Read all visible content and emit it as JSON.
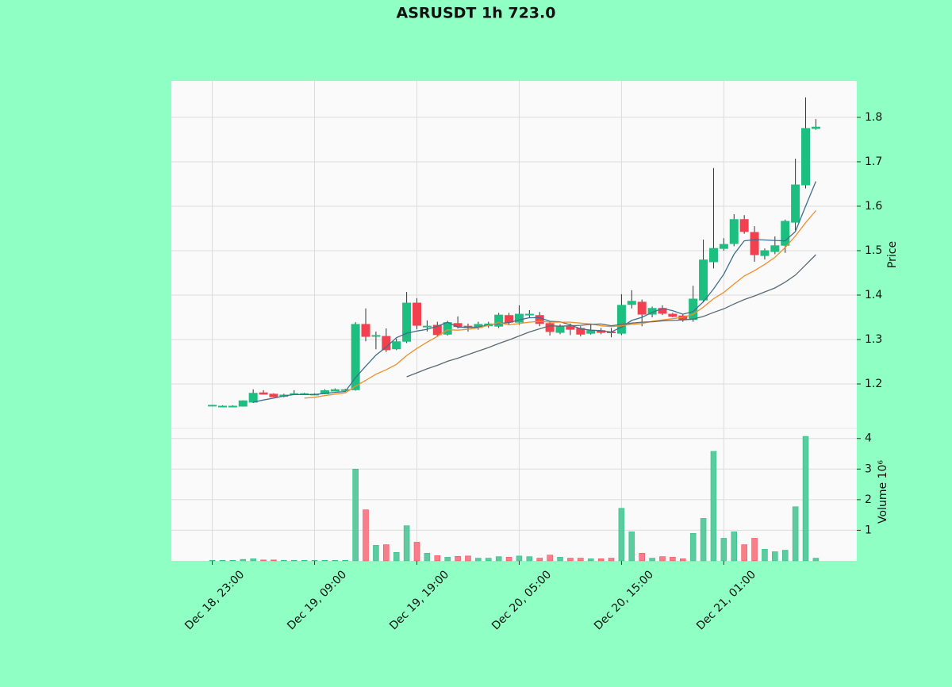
{
  "chart_data": {
    "type": "candlestick",
    "title": "ASRUSDT 1h 723.0",
    "categories": [
      "Dec 18, 23:00",
      null,
      null,
      null,
      null,
      null,
      null,
      null,
      null,
      null,
      "Dec 19, 09:00",
      null,
      null,
      null,
      null,
      null,
      null,
      null,
      null,
      null,
      "Dec 19, 19:00",
      null,
      null,
      null,
      null,
      null,
      null,
      null,
      null,
      null,
      "Dec 20, 05:00",
      null,
      null,
      null,
      null,
      null,
      null,
      null,
      null,
      null,
      "Dec 20, 15:00",
      null,
      null,
      null,
      null,
      null,
      null,
      null,
      null,
      null,
      "Dec 21, 01:00",
      null,
      null,
      null,
      null,
      null,
      null,
      null,
      null,
      null
    ],
    "open": [
      1.152,
      1.15,
      1.15,
      1.15,
      1.159,
      1.18,
      1.177,
      1.172,
      1.178,
      1.178,
      1.177,
      1.178,
      1.184,
      1.187,
      1.187,
      1.334,
      1.309,
      1.307,
      1.279,
      1.296,
      1.382,
      1.33,
      1.332,
      1.312,
      1.336,
      1.33,
      1.327,
      1.331,
      1.33,
      1.354,
      1.339,
      1.357,
      1.354,
      1.336,
      1.316,
      1.329,
      1.325,
      1.314,
      1.32,
      1.317,
      1.314,
      1.379,
      1.384,
      1.357,
      1.37,
      1.357,
      1.353,
      1.345,
      1.389,
      1.475,
      1.505,
      1.516,
      1.57,
      1.541,
      1.489,
      1.498,
      1.512,
      1.564,
      1.648,
      1.775
    ],
    "high": [
      1.153,
      1.152,
      1.152,
      1.163,
      1.188,
      1.186,
      1.179,
      1.178,
      1.186,
      1.18,
      1.179,
      1.188,
      1.19,
      1.189,
      1.339,
      1.37,
      1.318,
      1.325,
      1.302,
      1.407,
      1.393,
      1.343,
      1.34,
      1.342,
      1.352,
      1.336,
      1.34,
      1.34,
      1.36,
      1.36,
      1.377,
      1.366,
      1.362,
      1.34,
      1.334,
      1.336,
      1.33,
      1.334,
      1.326,
      1.326,
      1.402,
      1.411,
      1.39,
      1.374,
      1.377,
      1.36,
      1.356,
      1.421,
      1.525,
      1.686,
      1.528,
      1.582,
      1.58,
      1.555,
      1.505,
      1.532,
      1.57,
      1.707,
      1.845,
      1.796
    ],
    "low": [
      1.151,
      1.149,
      1.149,
      1.149,
      1.157,
      1.176,
      1.17,
      1.17,
      1.176,
      1.176,
      1.175,
      1.177,
      1.183,
      1.185,
      1.185,
      1.296,
      1.278,
      1.272,
      1.276,
      1.292,
      1.323,
      1.318,
      1.307,
      1.309,
      1.325,
      1.318,
      1.322,
      1.326,
      1.326,
      1.332,
      1.333,
      1.35,
      1.33,
      1.309,
      1.312,
      1.31,
      1.307,
      1.311,
      1.312,
      1.305,
      1.31,
      1.37,
      1.33,
      1.35,
      1.355,
      1.35,
      1.34,
      1.34,
      1.385,
      1.46,
      1.5,
      1.51,
      1.538,
      1.475,
      1.48,
      1.492,
      1.495,
      1.545,
      1.64,
      1.772
    ],
    "close": [
      1.152,
      1.15,
      1.15,
      1.162,
      1.179,
      1.177,
      1.171,
      1.175,
      1.178,
      1.178,
      1.177,
      1.185,
      1.187,
      1.187,
      1.334,
      1.307,
      1.309,
      1.277,
      1.295,
      1.382,
      1.332,
      1.33,
      1.311,
      1.338,
      1.329,
      1.327,
      1.334,
      1.335,
      1.355,
      1.339,
      1.357,
      1.357,
      1.336,
      1.318,
      1.33,
      1.323,
      1.312,
      1.32,
      1.316,
      1.316,
      1.377,
      1.386,
      1.357,
      1.37,
      1.359,
      1.352,
      1.345,
      1.391,
      1.479,
      1.505,
      1.514,
      1.57,
      1.543,
      1.491,
      1.5,
      1.511,
      1.566,
      1.648,
      1.775,
      1.778
    ],
    "up_color": "#1cbf80",
    "down_color": "#f2404e",
    "xlim": [
      -4,
      63
    ],
    "ylim": [
      1.1,
      1.882
    ],
    "yticks": [
      1.2,
      1.3,
      1.4,
      1.5,
      1.6,
      1.7,
      1.8
    ],
    "ylabel": "Price",
    "grid": true,
    "series": [
      {
        "color": "#3f6e8c",
        "values": [
          null,
          null,
          null,
          null,
          1.159,
          1.164,
          1.168,
          1.173,
          1.176,
          1.176,
          1.176,
          1.179,
          1.181,
          1.183,
          1.214,
          1.24,
          1.265,
          1.283,
          1.304,
          1.314,
          1.319,
          1.323,
          1.33,
          1.339,
          1.328,
          1.327,
          1.328,
          1.333,
          1.336,
          1.338,
          1.344,
          1.349,
          1.349,
          1.341,
          1.34,
          1.333,
          1.324,
          1.321,
          1.32,
          1.317,
          1.328,
          1.343,
          1.35,
          1.361,
          1.37,
          1.365,
          1.357,
          1.363,
          1.385,
          1.414,
          1.447,
          1.492,
          1.522,
          1.525,
          1.524,
          1.523,
          1.522,
          1.543,
          1.6,
          1.656
        ]
      },
      {
        "color": "#f28e2b",
        "values": [
          null,
          null,
          null,
          null,
          null,
          null,
          null,
          null,
          null,
          1.168,
          1.17,
          1.174,
          1.177,
          1.18,
          1.195,
          1.208,
          1.222,
          1.232,
          1.244,
          1.264,
          1.28,
          1.294,
          1.307,
          1.322,
          1.321,
          1.323,
          1.326,
          1.332,
          1.338,
          1.333,
          1.336,
          1.339,
          1.341,
          1.339,
          1.339,
          1.339,
          1.337,
          1.335,
          1.331,
          1.329,
          1.331,
          1.334,
          1.336,
          1.341,
          1.344,
          1.347,
          1.35,
          1.357,
          1.373,
          1.392,
          1.406,
          1.425,
          1.443,
          1.455,
          1.469,
          1.485,
          1.507,
          1.533,
          1.563,
          1.59
        ]
      },
      {
        "color": "#5a6b72",
        "values": [
          null,
          null,
          null,
          null,
          null,
          null,
          null,
          null,
          null,
          null,
          null,
          null,
          null,
          null,
          null,
          null,
          null,
          null,
          null,
          1.216,
          1.225,
          1.234,
          1.242,
          1.251,
          1.258,
          1.266,
          1.274,
          1.282,
          1.291,
          1.299,
          1.308,
          1.317,
          1.324,
          1.331,
          1.33,
          1.331,
          1.332,
          1.334,
          1.335,
          1.331,
          1.334,
          1.337,
          1.339,
          1.34,
          1.342,
          1.343,
          1.344,
          1.346,
          1.352,
          1.361,
          1.369,
          1.38,
          1.39,
          1.398,
          1.407,
          1.416,
          1.429,
          1.445,
          1.468,
          1.491
        ]
      }
    ],
    "volume": {
      "values": [
        0.02,
        0.02,
        0.02,
        0.05,
        0.07,
        0.03,
        0.03,
        0.02,
        0.02,
        0.02,
        0.02,
        0.02,
        0.02,
        0.02,
        3.0,
        1.67,
        0.51,
        0.53,
        0.28,
        1.15,
        0.61,
        0.25,
        0.17,
        0.12,
        0.15,
        0.16,
        0.09,
        0.09,
        0.14,
        0.12,
        0.16,
        0.14,
        0.09,
        0.19,
        0.12,
        0.09,
        0.09,
        0.07,
        0.07,
        0.09,
        1.72,
        0.95,
        0.25,
        0.09,
        0.14,
        0.12,
        0.07,
        0.9,
        1.39,
        3.58,
        0.74,
        0.95,
        0.53,
        0.74,
        0.38,
        0.3,
        0.35,
        1.77,
        4.07,
        0.09
      ],
      "up_color": "#5ccba0",
      "down_color": "#f77e8a",
      "ylim": [
        0,
        4.33
      ],
      "yticks": [
        1,
        2,
        3,
        4
      ],
      "ylabel": "Volume  10⁶"
    }
  }
}
